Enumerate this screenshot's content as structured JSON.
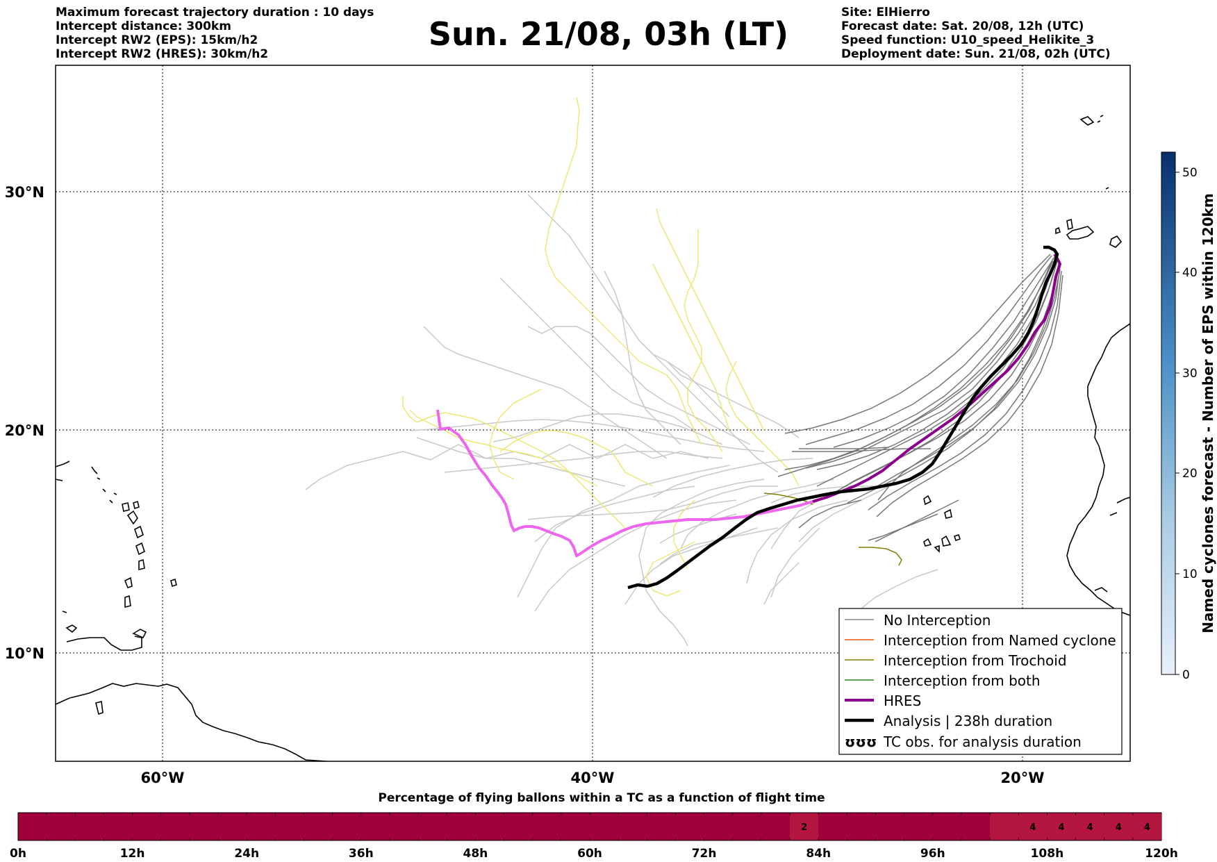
{
  "header": {
    "left_lines": [
      "Maximum forecast trajectory duration : 10 days",
      "Intercept distance: 300km",
      "Intercept RW2 (EPS):  15km/h2",
      "Intercept RW2 (HRES): 30km/h2"
    ],
    "title": "Sun. 21/08, 03h (LT)",
    "right_lines": [
      "Site: ElHierro",
      "Forecast date: Sat. 20/08, 12h (UTC)",
      "Speed function: U10_speed_Helikite_3",
      "Deployment date: Sun. 21/08, 02h (UTC)"
    ]
  },
  "map": {
    "lat_labels": [
      "30°N",
      "20°N",
      "10°N"
    ],
    "lon_labels": [
      "60°W",
      "40°W",
      "20°W"
    ],
    "colors": {
      "no_interception": "#777777",
      "eps_light": "#c8c8c8",
      "eps_yellow": "#ece774",
      "trochoid": "#808000",
      "hres": "#8b008b",
      "hres_pink": "#ee66ee",
      "analysis": "#000000"
    }
  },
  "legend": {
    "items": [
      {
        "label": "No Interception",
        "color": "#888888",
        "kind": "thin"
      },
      {
        "label": "Interception from Named cyclone",
        "color": "#ff5500",
        "kind": "thin"
      },
      {
        "label": "Interception from Trochoid",
        "color": "#808000",
        "kind": "thin"
      },
      {
        "label": "Interception from both",
        "color": "#228b22",
        "kind": "thin"
      },
      {
        "label": "HRES",
        "color": "#8b008b",
        "kind": "thick"
      },
      {
        "label": "Analysis | 238h duration",
        "color": "#000000",
        "kind": "thick"
      },
      {
        "label": "TC obs. for analysis duration",
        "color": "#000000",
        "kind": "symbol",
        "symbol": "ʊʊʊ"
      }
    ]
  },
  "colorbar": {
    "title": "Named cyclones forecast - Number of EPS within 120km",
    "ticks": [
      "0",
      "10",
      "20",
      "30",
      "40",
      "50"
    ],
    "range": [
      0,
      52
    ],
    "color_low": "#e8f0fa",
    "color_high": "#08306b"
  },
  "time_bar": {
    "title": "Percentage of flying ballons within a TC as a function of flight time",
    "ticks": [
      "0h",
      "12h",
      "24h",
      "36h",
      "48h",
      "60h",
      "72h",
      "84h",
      "96h",
      "108h",
      "120h"
    ],
    "base_color": "#a0003c",
    "highlight_color": "#b5163f",
    "cells": [
      {
        "hour": 84,
        "label": "2"
      },
      {
        "hour": 105,
        "label": ""
      },
      {
        "hour": 108,
        "label": "4"
      },
      {
        "hour": 111,
        "label": "4"
      },
      {
        "hour": 114,
        "label": "4"
      },
      {
        "hour": 117,
        "label": "4"
      },
      {
        "hour": 120,
        "label": "4"
      }
    ]
  }
}
